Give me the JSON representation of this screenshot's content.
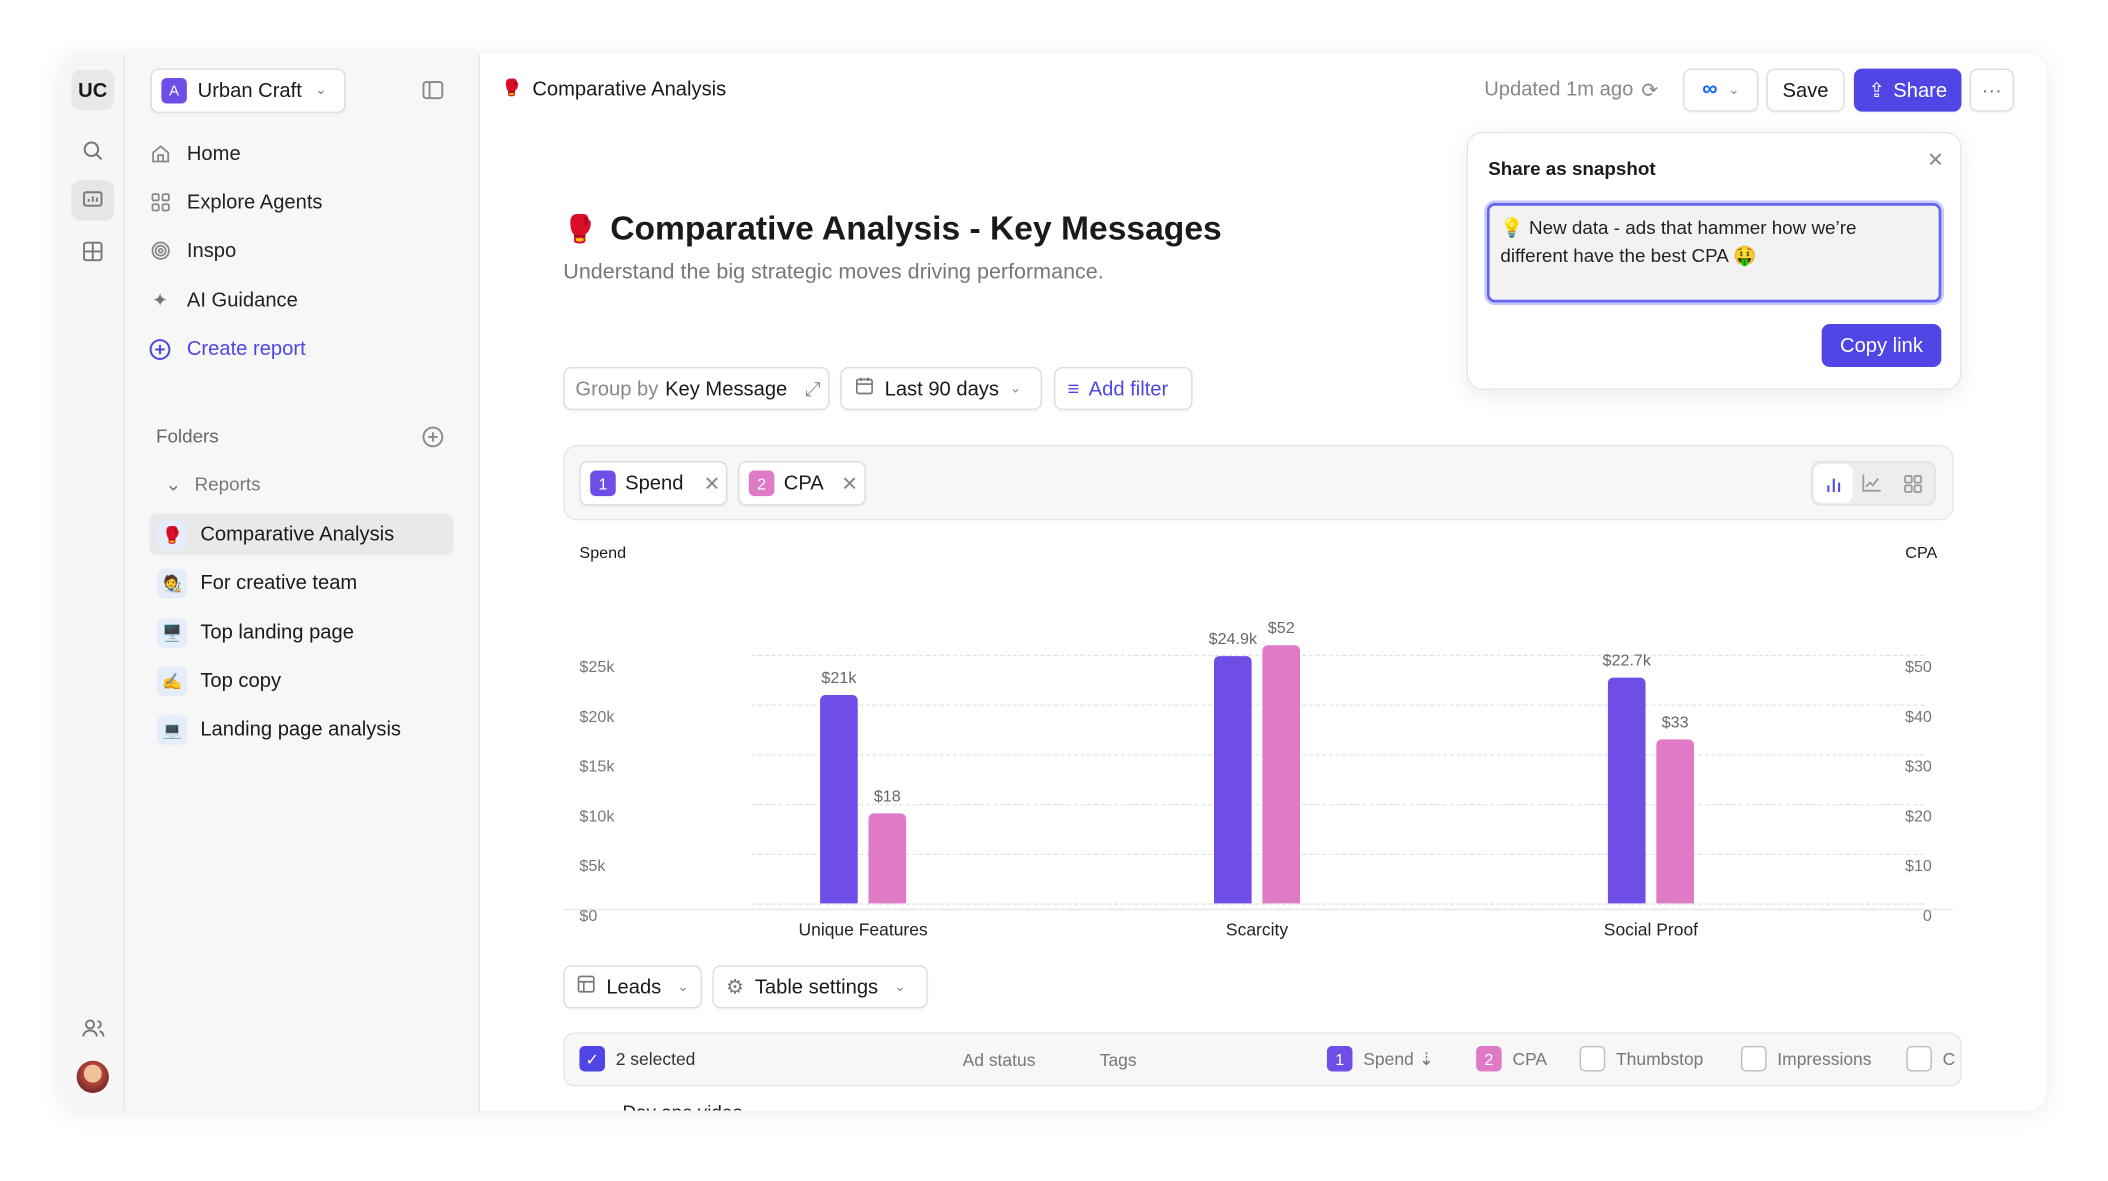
{
  "workspace": {
    "initials": "UC",
    "name": "Urban Craft",
    "badge": "A"
  },
  "sidebar": {
    "nav": [
      {
        "label": "Home",
        "icon": "home-icon"
      },
      {
        "label": "Explore Agents",
        "icon": "grid-icon"
      },
      {
        "label": "Inspo",
        "icon": "spiral-icon"
      },
      {
        "label": "AI Guidance",
        "icon": "sparkle-icon"
      }
    ],
    "create_report": "Create report",
    "folders_label": "Folders",
    "reports_label": "Reports",
    "reports": [
      {
        "label": "Comparative Analysis",
        "emoji": "🥊",
        "active": true
      },
      {
        "label": "For creative team",
        "emoji": "🧑‍🎨"
      },
      {
        "label": "Top landing page",
        "emoji": "🖥️"
      },
      {
        "label": "Top copy",
        "emoji": "✍️"
      },
      {
        "label": "Landing page analysis",
        "emoji": "💻"
      }
    ]
  },
  "header": {
    "crumb": "Comparative Analysis",
    "crumb_emoji": "🥊",
    "updated": "Updated 1m ago",
    "save": "Save",
    "share": "Share"
  },
  "page": {
    "emoji": "🥊",
    "title": "Comparative Analysis - Key Messages",
    "subtitle": "Understand the big strategic moves driving performance."
  },
  "filters": {
    "group_prefix": "Group by",
    "group_value": "Key Message",
    "date": "Last 90 days",
    "add_filter": "Add filter"
  },
  "metrics": [
    {
      "num": "1",
      "label": "Spend",
      "color": "#6f4ee8"
    },
    {
      "num": "2",
      "label": "CPA",
      "color": "#df7ac6"
    }
  ],
  "popup": {
    "title": "Share as snapshot",
    "message": "💡 New data - ads that hammer how we’re different have the best CPA 🤑",
    "copy": "Copy link"
  },
  "chart_data": {
    "type": "bar",
    "categories": [
      "Unique Features",
      "Scarcity",
      "Social Proof"
    ],
    "series": [
      {
        "name": "Spend",
        "values": [
          21000,
          24900,
          22700
        ],
        "labels": [
          "$21k",
          "$24.9k",
          "$22.7k"
        ],
        "color": "#6f4ee8"
      },
      {
        "name": "CPA",
        "values": [
          18,
          52,
          33
        ],
        "labels": [
          "$18",
          "$52",
          "$33"
        ],
        "color": "#df7ac6"
      }
    ],
    "ylabel_left": "Spend",
    "ylabel_right": "CPA",
    "ylim_left": [
      0,
      25000
    ],
    "ylim_right": [
      0,
      50
    ],
    "left_ticks": [
      "$0",
      "$5k",
      "$10k",
      "$15k",
      "$20k",
      "$25k"
    ],
    "right_ticks": [
      "0",
      "$10",
      "$20",
      "$30",
      "$40",
      "$50"
    ]
  },
  "table": {
    "view": "Leads",
    "settings": "Table settings",
    "selected": "2 selected",
    "columns": [
      "Ad status",
      "Tags"
    ],
    "metric_cols": [
      {
        "num": "1",
        "label": "Spend"
      },
      {
        "num": "2",
        "label": "CPA"
      }
    ],
    "unchecked_cols": [
      "Thumbstop",
      "Impressions",
      "C"
    ],
    "first_row": "Day one video"
  }
}
